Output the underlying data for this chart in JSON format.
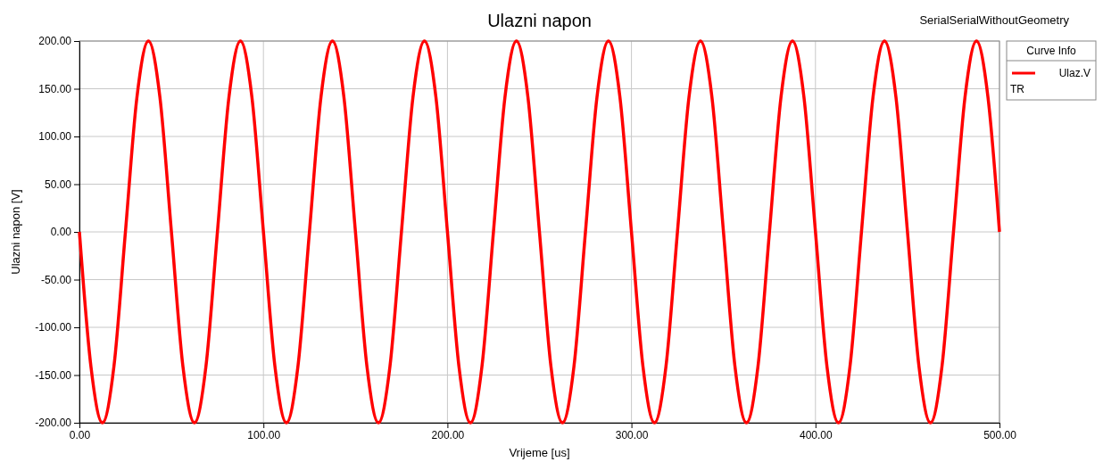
{
  "chart_data": {
    "type": "line",
    "title": "Ulazni napon",
    "xlabel": "Vrijeme [us]",
    "ylabel": "Ulazni napon [V]",
    "legend_title": "Curve Info",
    "annotations": [
      "SerialSerialWithoutGeometry",
      "TR"
    ],
    "x": [
      0,
      6.25,
      12.5,
      18.75,
      25,
      31.25,
      37.5,
      43.75,
      50,
      56.25,
      62.5,
      68.75,
      75,
      81.25,
      87.5,
      93.75,
      100,
      106.25,
      112.5,
      118.75,
      125,
      131.25,
      137.5,
      143.75,
      150,
      156.25,
      162.5,
      168.75,
      175,
      181.25,
      187.5,
      193.75,
      200,
      206.25,
      212.5,
      218.75,
      225,
      231.25,
      237.5,
      243.75,
      250,
      256.25,
      262.5,
      268.75,
      275,
      281.25,
      287.5,
      293.75,
      300,
      306.25,
      312.5,
      318.75,
      325,
      331.25,
      337.5,
      343.75,
      350,
      356.25,
      362.5,
      368.75,
      375,
      381.25,
      387.5,
      393.75,
      400,
      406.25,
      412.5,
      418.75,
      425,
      431.25,
      437.5,
      443.75,
      450,
      456.25,
      462.5,
      468.75,
      475,
      481.25,
      487.5,
      493.75,
      500
    ],
    "series": [
      {
        "name": "Ulaz.V",
        "color": "#ff0000",
        "values": [
          0,
          -141,
          -200,
          -141,
          0,
          141,
          200,
          141,
          0,
          -141,
          -200,
          -141,
          0,
          141,
          200,
          141,
          0,
          -141,
          -200,
          -141,
          0,
          141,
          200,
          141,
          0,
          -141,
          -200,
          -141,
          0,
          141,
          200,
          141,
          0,
          -141,
          -200,
          -141,
          0,
          141,
          200,
          141,
          0,
          -141,
          -200,
          -141,
          0,
          141,
          200,
          141,
          0,
          -141,
          -200,
          -141,
          0,
          141,
          200,
          141,
          0,
          -141,
          -200,
          -141,
          0,
          141,
          200,
          141,
          0,
          -141,
          -200,
          -141,
          0,
          141,
          200,
          141,
          0,
          -141,
          -200,
          -141,
          0,
          141,
          200,
          141,
          0
        ]
      }
    ],
    "xlim": [
      0,
      500
    ],
    "ylim": [
      -200,
      200
    ],
    "xticks": [
      {
        "value": 0,
        "label": "0.00"
      },
      {
        "value": 100,
        "label": "100.00"
      },
      {
        "value": 200,
        "label": "200.00"
      },
      {
        "value": 300,
        "label": "300.00"
      },
      {
        "value": 400,
        "label": "400.00"
      },
      {
        "value": 500,
        "label": "500.00"
      }
    ],
    "yticks": [
      {
        "value": -200,
        "label": "-200.00"
      },
      {
        "value": -150,
        "label": "-150.00"
      },
      {
        "value": -100,
        "label": "-100.00"
      },
      {
        "value": -50,
        "label": "-50.00"
      },
      {
        "value": 0,
        "label": "0.00"
      },
      {
        "value": 50,
        "label": "50.00"
      },
      {
        "value": 100,
        "label": "100.00"
      },
      {
        "value": 150,
        "label": "150.00"
      },
      {
        "value": 200,
        "label": "200.00"
      }
    ],
    "grid": true,
    "legend": "right",
    "marker": "none",
    "line_style": "solid"
  }
}
